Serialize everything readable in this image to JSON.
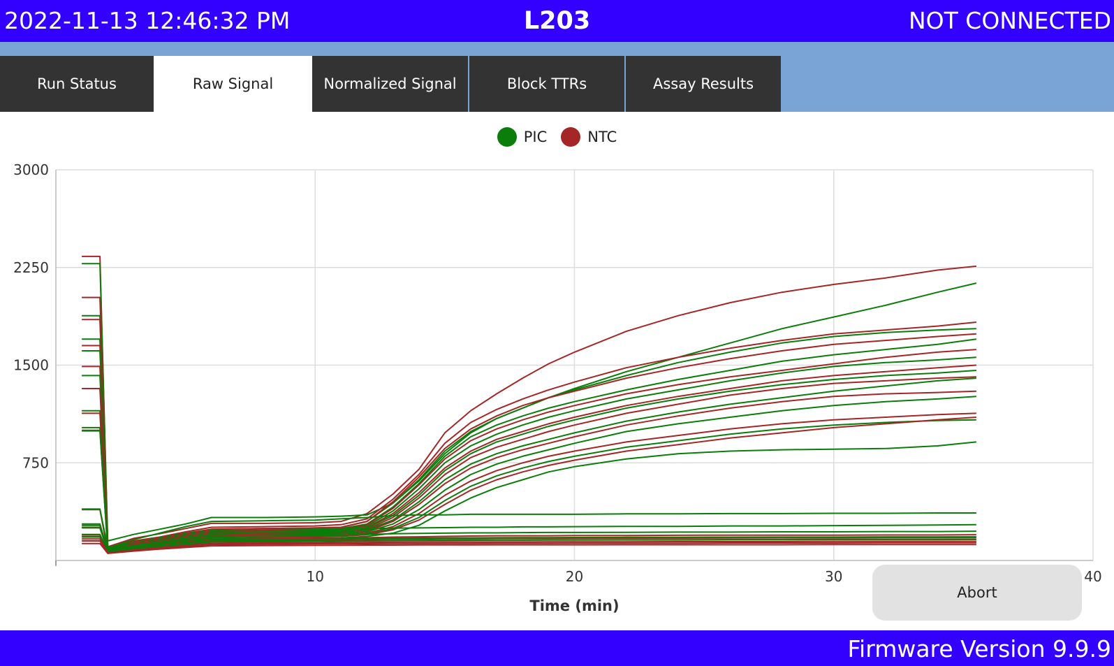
{
  "header": {
    "datetime": "2022-11-13 12:46:32 PM",
    "instrument": "L203",
    "connection_status": "NOT CONNECTED"
  },
  "tabs": [
    {
      "label": "Run Status",
      "active": false
    },
    {
      "label": "Raw Signal",
      "active": true
    },
    {
      "label": "Normalized Signal",
      "active": false
    },
    {
      "label": "Block TTRs",
      "active": false
    },
    {
      "label": "Assay Results",
      "active": false
    }
  ],
  "colors": {
    "header_bg": "#3300ff",
    "tabstrip_bg": "#7aa3d6",
    "tab_bg": "#333333",
    "pic": "#0a7d0a",
    "ntc": "#a52626"
  },
  "abort_button": {
    "label": "Abort"
  },
  "footer": {
    "firmware": "Firmware Version 9.9.9"
  },
  "chart_data": {
    "type": "line",
    "xlabel": "Time (min)",
    "ylabel": "",
    "xlim": [
      0,
      40
    ],
    "ylim": [
      0,
      3000
    ],
    "x_ticks": [
      10,
      20,
      30,
      40
    ],
    "y_ticks": [
      750,
      1500,
      2250,
      3000
    ],
    "grid": true,
    "legend": {
      "position": "top-center",
      "entries": [
        "PIC",
        "NTC"
      ]
    },
    "x": [
      1,
      1.7,
      2,
      3,
      4,
      5,
      6,
      8,
      10,
      11,
      12,
      13,
      14,
      15,
      16,
      17,
      18,
      19,
      20,
      22,
      24,
      26,
      28,
      30,
      32,
      34,
      35.5
    ],
    "series": [
      {
        "name": "NTC",
        "values": [
          2335,
          2335,
          105,
          170,
          205,
          245,
          285,
          285,
          290,
          300,
          360,
          510,
          700,
          980,
          1150,
          1280,
          1400,
          1510,
          1600,
          1760,
          1880,
          1980,
          2060,
          2120,
          2170,
          2230,
          2260
        ]
      },
      {
        "name": "PIC",
        "values": [
          2280,
          2280,
          150,
          200,
          240,
          280,
          330,
          330,
          335,
          340,
          350,
          440,
          610,
          820,
          980,
          1090,
          1170,
          1250,
          1320,
          1450,
          1560,
          1670,
          1780,
          1870,
          1960,
          2060,
          2130
        ]
      },
      {
        "name": "NTC",
        "values": [
          2020,
          2020,
          90,
          150,
          180,
          220,
          255,
          260,
          265,
          275,
          320,
          470,
          660,
          900,
          1060,
          1160,
          1240,
          1310,
          1370,
          1480,
          1560,
          1630,
          1690,
          1740,
          1770,
          1800,
          1830
        ]
      },
      {
        "name": "PIC",
        "values": [
          1880,
          1880,
          100,
          140,
          175,
          210,
          240,
          245,
          250,
          255,
          300,
          440,
          620,
          840,
          990,
          1090,
          1170,
          1250,
          1310,
          1420,
          1520,
          1600,
          1670,
          1720,
          1750,
          1770,
          1780
        ]
      },
      {
        "name": "NTC",
        "values": [
          1850,
          1850,
          85,
          140,
          170,
          205,
          240,
          245,
          250,
          255,
          300,
          450,
          640,
          860,
          1010,
          1110,
          1190,
          1250,
          1300,
          1400,
          1480,
          1550,
          1610,
          1660,
          1690,
          1720,
          1740
        ]
      },
      {
        "name": "PIC",
        "values": [
          1700,
          1700,
          95,
          135,
          165,
          200,
          230,
          235,
          240,
          245,
          280,
          410,
          590,
          800,
          950,
          1040,
          1110,
          1170,
          1220,
          1310,
          1390,
          1460,
          1530,
          1580,
          1620,
          1660,
          1700
        ]
      },
      {
        "name": "NTC",
        "values": [
          1650,
          1650,
          80,
          130,
          160,
          195,
          225,
          230,
          232,
          235,
          275,
          400,
          580,
          780,
          920,
          1010,
          1080,
          1140,
          1190,
          1280,
          1350,
          1410,
          1460,
          1510,
          1560,
          1600,
          1620
        ]
      },
      {
        "name": "PIC",
        "values": [
          1610,
          1610,
          90,
          125,
          155,
          190,
          220,
          225,
          230,
          235,
          265,
          380,
          550,
          750,
          880,
          970,
          1040,
          1100,
          1150,
          1240,
          1310,
          1380,
          1440,
          1490,
          1520,
          1540,
          1560
        ]
      },
      {
        "name": "NTC",
        "values": [
          1490,
          1490,
          78,
          125,
          150,
          185,
          215,
          220,
          222,
          225,
          255,
          360,
          520,
          710,
          840,
          930,
          990,
          1050,
          1100,
          1190,
          1260,
          1320,
          1380,
          1420,
          1450,
          1480,
          1500
        ]
      },
      {
        "name": "PIC",
        "values": [
          1420,
          1420,
          85,
          120,
          148,
          182,
          210,
          215,
          220,
          225,
          250,
          345,
          500,
          690,
          820,
          910,
          970,
          1030,
          1080,
          1170,
          1240,
          1300,
          1350,
          1390,
          1420,
          1440,
          1460
        ]
      },
      {
        "name": "NTC",
        "values": [
          1320,
          1320,
          75,
          120,
          145,
          178,
          205,
          210,
          212,
          215,
          240,
          330,
          480,
          660,
          790,
          870,
          930,
          990,
          1040,
          1130,
          1200,
          1270,
          1320,
          1360,
          1380,
          1400,
          1410
        ]
      },
      {
        "name": "PIC",
        "values": [
          1150,
          1150,
          80,
          115,
          140,
          172,
          200,
          205,
          210,
          214,
          235,
          310,
          450,
          620,
          740,
          820,
          880,
          930,
          980,
          1070,
          1140,
          1200,
          1250,
          1300,
          1340,
          1380,
          1400
        ]
      },
      {
        "name": "NTC",
        "values": [
          1130,
          1130,
          72,
          110,
          138,
          170,
          195,
          200,
          202,
          205,
          225,
          300,
          430,
          590,
          710,
          790,
          850,
          900,
          950,
          1040,
          1110,
          1170,
          1220,
          1260,
          1280,
          1290,
          1300
        ]
      },
      {
        "name": "PIC",
        "values": [
          1020,
          1020,
          78,
          110,
          135,
          165,
          190,
          195,
          200,
          204,
          220,
          280,
          390,
          540,
          660,
          740,
          800,
          850,
          900,
          990,
          1050,
          1100,
          1150,
          1190,
          1220,
          1240,
          1260
        ]
      },
      {
        "name": "NTC",
        "values": [
          1000,
          1000,
          70,
          105,
          130,
          160,
          185,
          190,
          192,
          195,
          210,
          260,
          360,
          500,
          610,
          690,
          750,
          800,
          840,
          910,
          960,
          1010,
          1050,
          1080,
          1100,
          1120,
          1130
        ]
      },
      {
        "name": "PIC",
        "values": [
          995,
          995,
          75,
          105,
          128,
          158,
          180,
          185,
          190,
          192,
          205,
          245,
          330,
          460,
          570,
          650,
          710,
          760,
          800,
          870,
          920,
          970,
          1010,
          1040,
          1060,
          1075,
          1080
        ]
      },
      {
        "name": "NTC",
        "values": [
          390,
          390,
          68,
          100,
          125,
          152,
          175,
          180,
          182,
          185,
          198,
          235,
          310,
          430,
          540,
          620,
          680,
          730,
          770,
          840,
          890,
          940,
          980,
          1020,
          1050,
          1080,
          1100
        ]
      },
      {
        "name": "PIC",
        "values": [
          395,
          395,
          95,
          160,
          210,
          260,
          300,
          305,
          310,
          320,
          330,
          345,
          350,
          350,
          355,
          355,
          355,
          355,
          355,
          358,
          358,
          360,
          360,
          362,
          362,
          365,
          365
        ]
      },
      {
        "name": "PIC",
        "values": [
          280,
          280,
          70,
          95,
          120,
          145,
          165,
          170,
          172,
          174,
          185,
          210,
          270,
          380,
          480,
          560,
          620,
          680,
          720,
          780,
          820,
          840,
          850,
          855,
          860,
          880,
          910
        ]
      },
      {
        "name": "PIC",
        "values": [
          270,
          270,
          72,
          110,
          140,
          170,
          200,
          220,
          235,
          240,
          245,
          248,
          250,
          252,
          255,
          255,
          258,
          258,
          260,
          262,
          262,
          265,
          265,
          268,
          270,
          272,
          275
        ]
      },
      {
        "name": "NTC",
        "values": [
          255,
          255,
          66,
          95,
          118,
          140,
          160,
          165,
          168,
          170,
          175,
          180,
          182,
          185,
          188,
          190,
          190,
          190,
          192,
          192,
          194,
          195,
          195,
          195,
          196,
          196,
          198
        ]
      },
      {
        "name": "PIC",
        "values": [
          250,
          250,
          70,
          100,
          125,
          150,
          175,
          185,
          190,
          195,
          200,
          205,
          208,
          210,
          212,
          212,
          214,
          215,
          215,
          216,
          218,
          218,
          220,
          220,
          222,
          222,
          225
        ]
      },
      {
        "name": "NTC",
        "values": [
          200,
          200,
          62,
          88,
          110,
          130,
          150,
          155,
          158,
          160,
          163,
          165,
          166,
          168,
          168,
          170,
          170,
          170,
          171,
          172,
          172,
          173,
          174,
          174,
          175,
          175,
          176
        ]
      },
      {
        "name": "PIC",
        "values": [
          198,
          198,
          64,
          90,
          112,
          135,
          155,
          160,
          162,
          165,
          168,
          170,
          172,
          173,
          174,
          175,
          176,
          176,
          177,
          178,
          178,
          179,
          180,
          180,
          181,
          181,
          182
        ]
      },
      {
        "name": "NTC",
        "values": [
          185,
          185,
          60,
          84,
          104,
          122,
          140,
          144,
          146,
          148,
          150,
          152,
          153,
          154,
          155,
          156,
          156,
          157,
          157,
          158,
          158,
          159,
          159,
          160,
          160,
          160,
          161
        ]
      },
      {
        "name": "PIC",
        "values": [
          180,
          180,
          61,
          85,
          106,
          125,
          143,
          147,
          149,
          151,
          153,
          154,
          155,
          156,
          157,
          158,
          158,
          159,
          159,
          160,
          160,
          161,
          161,
          162,
          162,
          162,
          163
        ]
      },
      {
        "name": "NTC",
        "values": [
          165,
          165,
          58,
          80,
          98,
          115,
          130,
          134,
          136,
          138,
          139,
          140,
          141,
          142,
          142,
          143,
          143,
          144,
          144,
          144,
          145,
          145,
          145,
          146,
          146,
          146,
          147
        ]
      },
      {
        "name": "NTC",
        "values": [
          150,
          150,
          56,
          76,
          92,
          108,
          122,
          125,
          127,
          128,
          129,
          130,
          130,
          131,
          131,
          132,
          132,
          132,
          133,
          133,
          133,
          134,
          134,
          134,
          135,
          135,
          135
        ]
      },
      {
        "name": "NTC",
        "values": [
          130,
          130,
          54,
          72,
          87,
          100,
          112,
          115,
          116,
          117,
          118,
          118,
          119,
          119,
          119,
          120,
          120,
          120,
          120,
          121,
          121,
          121,
          121,
          122,
          122,
          122,
          122
        ]
      }
    ]
  }
}
